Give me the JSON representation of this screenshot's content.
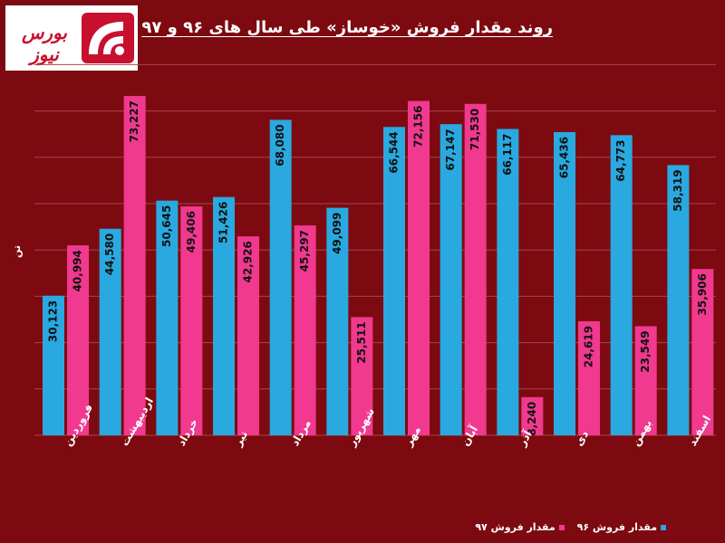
{
  "title": "روند مقدار فروش «خوساز» طی سال های ۹۶ و ۹۷",
  "logo_text": "بورس نیوز",
  "colors": {
    "background": "#7d0a10",
    "series_96": "#29a9e0",
    "series_97": "#f0398f",
    "grid": "#a2474c"
  },
  "chart_data": {
    "type": "bar",
    "title": "روند مقدار فروش «خوساز» طی سال های ۹۶ و ۹۷",
    "ylabel": "تن",
    "xlabel": "",
    "ylim": [
      0,
      80000
    ],
    "grid": true,
    "legend_position": "bottom",
    "categories": [
      "فروردین",
      "اردیبهشت",
      "خرداد",
      "تیر",
      "مرداد",
      "شهریور",
      "مهر",
      "آبان",
      "آذر",
      "دی",
      "بهمن",
      "اسفند"
    ],
    "series": [
      {
        "name": "مقدار فروش ۹۶",
        "color": "#29a9e0",
        "values": [
          30123,
          44580,
          50645,
          51426,
          68080,
          49099,
          66544,
          67147,
          66117,
          65436,
          64773,
          58319
        ],
        "labels": [
          "30,123",
          "44,580",
          "50,645",
          "51,426",
          "68,080",
          "49,099",
          "66,544",
          "67,147",
          "66,117",
          "65,436",
          "64,773",
          "58,319"
        ]
      },
      {
        "name": "مقدار فروش ۹۷",
        "color": "#f0398f",
        "values": [
          40994,
          73227,
          49406,
          42926,
          45297,
          25511,
          72156,
          71530,
          8240,
          24619,
          23549,
          35906
        ],
        "labels": [
          "40,994",
          "73,227",
          "49,406",
          "42,926",
          "45,297",
          "25,511",
          "72,156",
          "71,530",
          "8,240",
          "24,619",
          "23,549",
          "35,906"
        ]
      }
    ]
  }
}
